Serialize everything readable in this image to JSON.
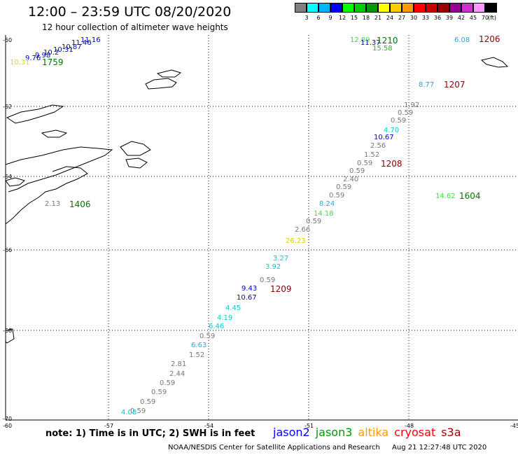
{
  "title": "12:00 – 23:59 UTC 08/20/2020",
  "subtitle": "12 hour collection of altimeter wave heights",
  "colorbar": {
    "colors": [
      "#808080",
      "#00ffff",
      "#00b4ff",
      "#0000ff",
      "#00ff00",
      "#00cc00",
      "#009900",
      "#ffff00",
      "#ffcc00",
      "#ff9900",
      "#ff0000",
      "#cc0000",
      "#990000",
      "#990099",
      "#cc33cc",
      "#ff99ff",
      "#000000"
    ],
    "labels": [
      "3",
      "6",
      "9",
      "12",
      "15",
      "18",
      "21",
      "24",
      "27",
      "30",
      "33",
      "36",
      "39",
      "42",
      "45",
      "70",
      "(ft)"
    ]
  },
  "axes": {
    "lat_labels": [
      "-60",
      "-62",
      "-64",
      "-66",
      "-68",
      "-70"
    ],
    "lon_labels": [
      "-60",
      "-57",
      "-54",
      "-51",
      "-48",
      "-45"
    ]
  },
  "observations": [
    {
      "text": "11.16",
      "color": "#0000cc"
    },
    {
      "text": "11.46",
      "color": "#0000cc"
    },
    {
      "text": "10.87",
      "color": "#0000cc"
    },
    {
      "text": "10.31",
      "color": "#0000cc"
    },
    {
      "text": "10.2",
      "color": "#0000cc"
    },
    {
      "text": "9.98",
      "color": "#0000cc"
    },
    {
      "text": "9.76",
      "color": "#0000cc"
    },
    {
      "text": "10.31",
      "color": "#dddd00"
    },
    {
      "text": "12.89",
      "color": "#44dd44"
    },
    {
      "text": "11.37",
      "color": "#0000cc"
    },
    {
      "text": "15.58",
      "color": "#22bb22"
    },
    {
      "text": "6.08",
      "color": "#22aadd"
    },
    {
      "text": "8.77",
      "color": "#22aadd"
    },
    {
      "text": "1.92",
      "color": "#777777"
    },
    {
      "text": "0.59",
      "color": "#777777"
    },
    {
      "text": "0.59",
      "color": "#777777"
    },
    {
      "text": "4.70",
      "color": "#00cccc"
    },
    {
      "text": "10.67",
      "color": "#0000cc"
    },
    {
      "text": "2.56",
      "color": "#777777"
    },
    {
      "text": "1.52",
      "color": "#777777"
    },
    {
      "text": "0.59",
      "color": "#777777"
    },
    {
      "text": "0.59",
      "color": "#777777"
    },
    {
      "text": "2.40",
      "color": "#777777"
    },
    {
      "text": "0.59",
      "color": "#777777"
    },
    {
      "text": "0.59",
      "color": "#777777"
    },
    {
      "text": "8.24",
      "color": "#22aadd"
    },
    {
      "text": "14.18",
      "color": "#44dd44"
    },
    {
      "text": "0.59",
      "color": "#777777"
    },
    {
      "text": "2.66",
      "color": "#777777"
    },
    {
      "text": "26.23",
      "color": "#ddcc00"
    },
    {
      "text": "14.62",
      "color": "#44dd44"
    },
    {
      "text": "2.13",
      "color": "#777777"
    },
    {
      "text": "3.27",
      "color": "#00cccc"
    },
    {
      "text": "3.92",
      "color": "#00cccc"
    },
    {
      "text": "0.59",
      "color": "#777777"
    },
    {
      "text": "9.43",
      "color": "#0000cc"
    },
    {
      "text": "10.67",
      "color": "#0000cc"
    },
    {
      "text": "4.45",
      "color": "#00cccc"
    },
    {
      "text": "4.19",
      "color": "#00cccc"
    },
    {
      "text": "6.46",
      "color": "#00cccc"
    },
    {
      "text": "0.59",
      "color": "#777777"
    },
    {
      "text": "6.63",
      "color": "#22aadd"
    },
    {
      "text": "1.52",
      "color": "#777777"
    },
    {
      "text": "2.81",
      "color": "#777777"
    },
    {
      "text": "2.44",
      "color": "#777777"
    },
    {
      "text": "0.59",
      "color": "#777777"
    },
    {
      "text": "0.59",
      "color": "#777777"
    },
    {
      "text": "0.59",
      "color": "#777777"
    },
    {
      "text": "0.59",
      "color": "#777777"
    },
    {
      "text": "4.08",
      "color": "#00cccc"
    }
  ],
  "track_times": [
    {
      "text": "1210",
      "color": "#007700"
    },
    {
      "text": "1206",
      "color": "#880000"
    },
    {
      "text": "1759",
      "color": "#007700"
    },
    {
      "text": "1207",
      "color": "#880000"
    },
    {
      "text": "1208",
      "color": "#880000"
    },
    {
      "text": "1604",
      "color": "#007700"
    },
    {
      "text": "1406",
      "color": "#007700"
    },
    {
      "text": "1209",
      "color": "#880000"
    }
  ],
  "note": "note:  1) Time is in UTC;  2) SWH is in feet",
  "legend": [
    {
      "text": "jason2",
      "color": "#0000ff"
    },
    {
      "text": "jason3",
      "color": "#009900"
    },
    {
      "text": "altika",
      "color": "#ff9900"
    },
    {
      "text": "cryosat",
      "color": "#ff0000"
    },
    {
      "text": "s3a",
      "color": "#990000"
    }
  ],
  "credit": "NOAA/NESDIS Center for Satellite Applications and Research",
  "timestamp": "Aug 21 12:27:48 UTC 2020"
}
